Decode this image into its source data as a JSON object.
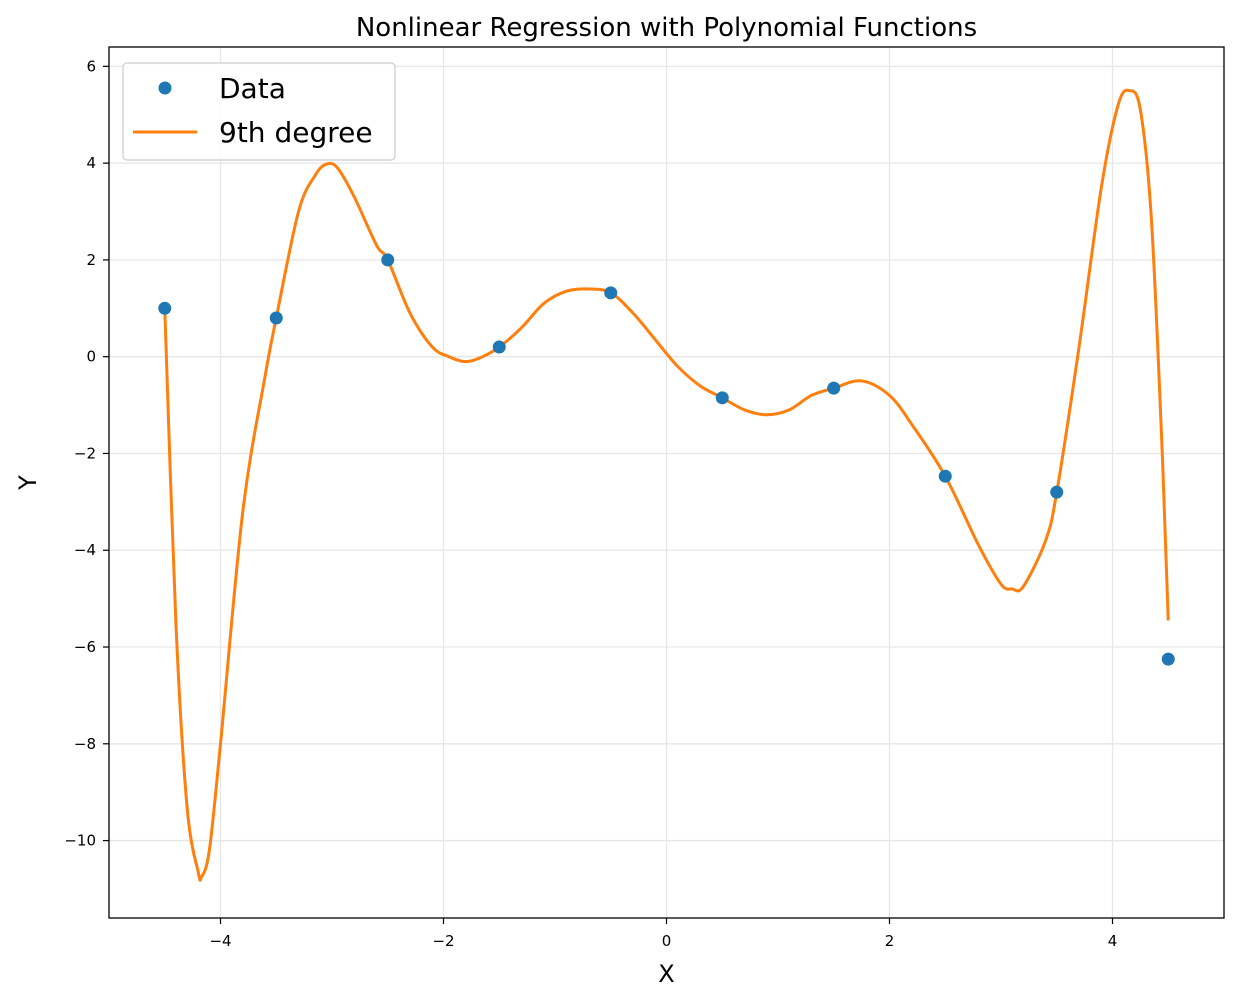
{
  "colors": {
    "data": "#1f77b4",
    "fit": "#ff7f0e",
    "grid": "#e6e6e6",
    "axes": "#000000"
  },
  "chart_data": {
    "type": "scatter",
    "title": "Nonlinear Regression with Polynomial Functions",
    "xlabel": "X",
    "ylabel": "Y",
    "xlim": [
      -5,
      5
    ],
    "ylim": [
      -11.6,
      6.4
    ],
    "xticks": [
      -4,
      -2,
      0,
      2,
      4
    ],
    "yticks": [
      -10,
      -8,
      -6,
      -4,
      -2,
      0,
      2,
      4,
      6
    ],
    "xtick_labels": [
      "−4",
      "−2",
      "0",
      "2",
      "4"
    ],
    "ytick_labels": [
      "−10",
      "−8",
      "−6",
      "−4",
      "−2",
      "0",
      "2",
      "4",
      "6"
    ],
    "grid": true,
    "legend_position": "top-left",
    "series": [
      {
        "name": "Data",
        "kind": "scatter",
        "x": [
          -4.5,
          -3.5,
          -2.5,
          -1.5,
          -0.5,
          0.5,
          1.5,
          2.5,
          3.5,
          4.5
        ],
        "y": [
          1.0,
          0.8,
          2.0,
          0.2,
          1.32,
          -0.85,
          -0.65,
          -2.47,
          -2.8,
          -6.25
        ]
      },
      {
        "name": "9th degree",
        "kind": "line",
        "x": [
          -4.5,
          -4.4,
          -4.3,
          -4.2,
          -4.17,
          -4.1,
          -4.0,
          -3.8,
          -3.6,
          -3.5,
          -3.3,
          -3.15,
          -3.05,
          -2.95,
          -2.8,
          -2.6,
          -2.5,
          -2.3,
          -2.1,
          -1.95,
          -1.8,
          -1.65,
          -1.5,
          -1.3,
          -1.1,
          -0.9,
          -0.7,
          -0.5,
          -0.3,
          -0.1,
          0.1,
          0.3,
          0.5,
          0.7,
          0.9,
          1.1,
          1.3,
          1.5,
          1.75,
          2.0,
          2.2,
          2.5,
          2.8,
          3.0,
          3.1,
          3.2,
          3.4,
          3.5,
          3.7,
          3.9,
          4.05,
          4.15,
          4.25,
          4.35,
          4.45,
          4.5
        ],
        "y": [
          1.0,
          -5.5,
          -9.3,
          -10.65,
          -10.75,
          -10.2,
          -8.0,
          -3.2,
          -0.4,
          0.8,
          3.0,
          3.75,
          3.98,
          3.9,
          3.3,
          2.3,
          2.0,
          0.9,
          0.2,
          0.0,
          -0.1,
          0.0,
          0.2,
          0.6,
          1.1,
          1.35,
          1.4,
          1.32,
          0.9,
          0.35,
          -0.2,
          -0.6,
          -0.85,
          -1.1,
          -1.2,
          -1.1,
          -0.8,
          -0.65,
          -0.5,
          -0.8,
          -1.4,
          -2.47,
          -3.9,
          -4.7,
          -4.8,
          -4.75,
          -3.8,
          -2.8,
          0.2,
          3.5,
          5.2,
          5.5,
          5.1,
          2.8,
          -2.2,
          -5.45
        ]
      }
    ]
  }
}
